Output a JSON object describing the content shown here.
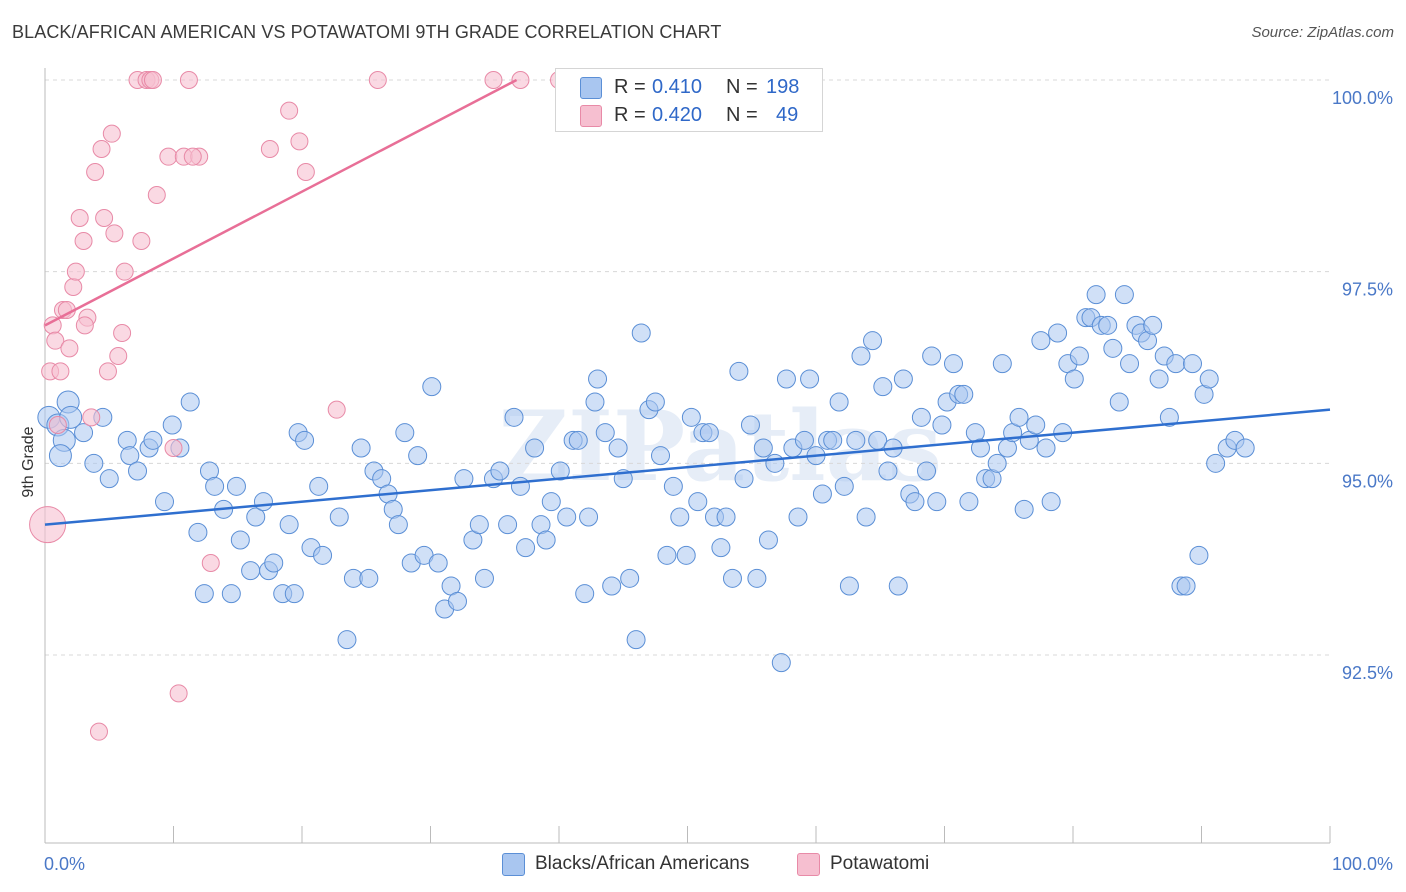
{
  "header": {
    "title": "BLACK/AFRICAN AMERICAN VS POTAWATOMI 9TH GRADE CORRELATION CHART",
    "source": "Source: ZipAtlas.com"
  },
  "watermark": "ZIPatlas",
  "legend": {
    "rows": [
      {
        "r_label": "R =",
        "r_value": "0.410",
        "n_label": "N =",
        "n_value": "198"
      },
      {
        "r_label": "R =",
        "r_value": "0.420",
        "n_label": "N =",
        "n_value": "49"
      }
    ]
  },
  "bottom_legend": [
    {
      "label": "Blacks/African Americans"
    },
    {
      "label": "Potawatomi"
    }
  ],
  "colors": {
    "blue_fill": "#a9c6f0",
    "blue_stroke": "#5b8fd6",
    "blue_line": "#2f6fcf",
    "pink_fill": "#f6bfd0",
    "pink_stroke": "#e88aa7",
    "pink_line": "#e86f97",
    "grid": "#d8d8d8",
    "tick_text": "#4a78c7"
  },
  "chart_data": {
    "type": "scatter",
    "title": "BLACK/AFRICAN AMERICAN VS POTAWATOMI 9TH GRADE CORRELATION CHART",
    "xlabel": "",
    "ylabel": "9th Grade",
    "xlim": [
      0,
      100
    ],
    "ylim": [
      90.0,
      100.2
    ],
    "x_tick_labels": [
      "0.0%",
      "100.0%"
    ],
    "y_ticks": [
      92.5,
      95.0,
      97.5,
      100.0
    ],
    "y_tick_labels": [
      "92.5%",
      "95.0%",
      "97.5%",
      "100.0%"
    ],
    "grid": true,
    "series": [
      {
        "name": "Blacks/African Americans",
        "R": 0.41,
        "N": 198,
        "trend": {
          "x": [
            0,
            100
          ],
          "y": [
            94.2,
            95.7
          ]
        },
        "points": [
          [
            0.3,
            95.6
          ],
          [
            1.0,
            95.5
          ],
          [
            1.5,
            95.3
          ],
          [
            1.8,
            95.8
          ],
          [
            2.0,
            95.6
          ],
          [
            1.2,
            95.1
          ],
          [
            3.0,
            95.4
          ],
          [
            3.8,
            95.0
          ],
          [
            4.5,
            95.6
          ],
          [
            5.0,
            94.8
          ],
          [
            6.4,
            95.3
          ],
          [
            6.6,
            95.1
          ],
          [
            7.2,
            94.9
          ],
          [
            8.1,
            95.2
          ],
          [
            8.4,
            95.3
          ],
          [
            9.3,
            94.5
          ],
          [
            9.9,
            95.5
          ],
          [
            10.5,
            95.2
          ],
          [
            11.3,
            95.8
          ],
          [
            11.9,
            94.1
          ],
          [
            12.4,
            93.3
          ],
          [
            12.8,
            94.9
          ],
          [
            13.2,
            94.7
          ],
          [
            13.9,
            94.4
          ],
          [
            14.5,
            93.3
          ],
          [
            14.9,
            94.7
          ],
          [
            15.2,
            94.0
          ],
          [
            16.0,
            93.6
          ],
          [
            16.4,
            94.3
          ],
          [
            17.0,
            94.5
          ],
          [
            17.4,
            93.6
          ],
          [
            17.8,
            93.7
          ],
          [
            18.5,
            93.3
          ],
          [
            19.0,
            94.2
          ],
          [
            19.4,
            93.3
          ],
          [
            19.7,
            95.4
          ],
          [
            20.2,
            95.3
          ],
          [
            20.7,
            93.9
          ],
          [
            21.3,
            94.7
          ],
          [
            21.6,
            93.8
          ],
          [
            22.9,
            94.3
          ],
          [
            23.5,
            92.7
          ],
          [
            24.0,
            93.5
          ],
          [
            24.6,
            95.2
          ],
          [
            25.2,
            93.5
          ],
          [
            25.6,
            94.9
          ],
          [
            26.2,
            94.8
          ],
          [
            26.7,
            94.6
          ],
          [
            27.1,
            94.4
          ],
          [
            27.5,
            94.2
          ],
          [
            28.0,
            95.4
          ],
          [
            28.5,
            93.7
          ],
          [
            29.0,
            95.1
          ],
          [
            29.5,
            93.8
          ],
          [
            30.1,
            96.0
          ],
          [
            30.6,
            93.7
          ],
          [
            31.1,
            93.1
          ],
          [
            31.6,
            93.4
          ],
          [
            32.1,
            93.2
          ],
          [
            32.6,
            94.8
          ],
          [
            33.3,
            94.0
          ],
          [
            33.8,
            94.2
          ],
          [
            34.2,
            93.5
          ],
          [
            34.9,
            94.8
          ],
          [
            35.4,
            94.9
          ],
          [
            36.0,
            94.2
          ],
          [
            36.5,
            95.6
          ],
          [
            37.0,
            94.7
          ],
          [
            37.4,
            93.9
          ],
          [
            38.1,
            95.2
          ],
          [
            38.6,
            94.2
          ],
          [
            39.0,
            94.0
          ],
          [
            39.4,
            94.5
          ],
          [
            40.1,
            94.9
          ],
          [
            40.6,
            94.3
          ],
          [
            41.1,
            95.3
          ],
          [
            41.5,
            95.3
          ],
          [
            42.0,
            93.3
          ],
          [
            42.3,
            94.3
          ],
          [
            42.8,
            95.8
          ],
          [
            43.0,
            96.1
          ],
          [
            43.6,
            95.4
          ],
          [
            44.1,
            93.4
          ],
          [
            44.6,
            95.2
          ],
          [
            45.0,
            94.8
          ],
          [
            45.5,
            93.5
          ],
          [
            46.0,
            92.7
          ],
          [
            46.4,
            96.7
          ],
          [
            47.0,
            95.7
          ],
          [
            47.5,
            95.8
          ],
          [
            47.9,
            95.1
          ],
          [
            48.4,
            93.8
          ],
          [
            48.9,
            94.7
          ],
          [
            49.4,
            94.3
          ],
          [
            49.9,
            93.8
          ],
          [
            50.3,
            95.6
          ],
          [
            50.8,
            94.5
          ],
          [
            51.2,
            95.4
          ],
          [
            51.7,
            95.4
          ],
          [
            52.1,
            94.3
          ],
          [
            52.6,
            93.9
          ],
          [
            53.0,
            94.3
          ],
          [
            53.5,
            93.5
          ],
          [
            54.0,
            96.2
          ],
          [
            54.4,
            94.8
          ],
          [
            54.9,
            95.5
          ],
          [
            55.4,
            93.5
          ],
          [
            55.9,
            95.2
          ],
          [
            56.3,
            94.0
          ],
          [
            56.8,
            95.0
          ],
          [
            57.3,
            92.4
          ],
          [
            57.7,
            96.1
          ],
          [
            58.2,
            95.2
          ],
          [
            58.6,
            94.3
          ],
          [
            59.1,
            95.3
          ],
          [
            59.5,
            96.1
          ],
          [
            60.0,
            95.1
          ],
          [
            60.5,
            94.6
          ],
          [
            60.9,
            95.3
          ],
          [
            61.3,
            95.3
          ],
          [
            61.8,
            95.8
          ],
          [
            62.2,
            94.7
          ],
          [
            62.6,
            93.4
          ],
          [
            63.1,
            95.3
          ],
          [
            63.5,
            96.4
          ],
          [
            63.9,
            94.3
          ],
          [
            64.4,
            96.6
          ],
          [
            64.8,
            95.3
          ],
          [
            65.2,
            96.0
          ],
          [
            65.6,
            94.9
          ],
          [
            66.0,
            95.2
          ],
          [
            66.4,
            93.4
          ],
          [
            66.8,
            96.1
          ],
          [
            67.3,
            94.6
          ],
          [
            67.7,
            94.5
          ],
          [
            68.2,
            95.6
          ],
          [
            68.6,
            94.9
          ],
          [
            69.0,
            96.4
          ],
          [
            69.4,
            94.5
          ],
          [
            69.8,
            95.5
          ],
          [
            70.2,
            95.8
          ],
          [
            70.7,
            96.3
          ],
          [
            71.1,
            95.9
          ],
          [
            71.5,
            95.9
          ],
          [
            71.9,
            94.5
          ],
          [
            72.4,
            95.4
          ],
          [
            72.8,
            95.2
          ],
          [
            73.2,
            94.8
          ],
          [
            73.7,
            94.8
          ],
          [
            74.1,
            95.0
          ],
          [
            74.5,
            96.3
          ],
          [
            74.9,
            95.2
          ],
          [
            75.3,
            95.4
          ],
          [
            75.8,
            95.6
          ],
          [
            76.2,
            94.4
          ],
          [
            76.6,
            95.3
          ],
          [
            77.1,
            95.5
          ],
          [
            77.5,
            96.6
          ],
          [
            77.9,
            95.2
          ],
          [
            78.3,
            94.5
          ],
          [
            78.8,
            96.7
          ],
          [
            79.2,
            95.4
          ],
          [
            79.6,
            96.3
          ],
          [
            80.1,
            96.1
          ],
          [
            80.5,
            96.4
          ],
          [
            81.0,
            96.9
          ],
          [
            81.4,
            96.9
          ],
          [
            81.8,
            97.2
          ],
          [
            82.2,
            96.8
          ],
          [
            82.7,
            96.8
          ],
          [
            83.1,
            96.5
          ],
          [
            83.6,
            95.8
          ],
          [
            84.0,
            97.2
          ],
          [
            84.4,
            96.3
          ],
          [
            84.9,
            96.8
          ],
          [
            85.3,
            96.7
          ],
          [
            85.8,
            96.6
          ],
          [
            86.2,
            96.8
          ],
          [
            86.7,
            96.1
          ],
          [
            87.1,
            96.4
          ],
          [
            87.5,
            95.6
          ],
          [
            88.0,
            96.3
          ],
          [
            88.4,
            93.4
          ],
          [
            88.8,
            93.4
          ],
          [
            89.3,
            96.3
          ],
          [
            89.8,
            93.8
          ],
          [
            90.2,
            95.9
          ],
          [
            90.6,
            96.1
          ],
          [
            91.1,
            95.0
          ],
          [
            92.0,
            95.2
          ],
          [
            92.6,
            95.3
          ],
          [
            93.4,
            95.2
          ]
        ]
      },
      {
        "name": "Potawatomi",
        "R": 0.42,
        "N": 49,
        "trend": {
          "x": [
            0,
            36.7
          ],
          "y": [
            96.8,
            100.0
          ]
        },
        "points": [
          [
            0.2,
            94.2
          ],
          [
            0.4,
            96.2
          ],
          [
            0.6,
            96.8
          ],
          [
            0.8,
            96.6
          ],
          [
            1.0,
            95.5
          ],
          [
            1.2,
            96.2
          ],
          [
            1.4,
            97.0
          ],
          [
            1.7,
            97.0
          ],
          [
            1.9,
            96.5
          ],
          [
            2.2,
            97.3
          ],
          [
            2.4,
            97.5
          ],
          [
            2.7,
            98.2
          ],
          [
            3.0,
            97.9
          ],
          [
            3.3,
            96.9
          ],
          [
            3.6,
            95.6
          ],
          [
            3.9,
            98.8
          ],
          [
            4.2,
            91.5
          ],
          [
            4.4,
            99.1
          ],
          [
            4.6,
            98.2
          ],
          [
            4.9,
            96.2
          ],
          [
            5.2,
            99.3
          ],
          [
            5.4,
            98.0
          ],
          [
            5.7,
            96.4
          ],
          [
            6.0,
            96.7
          ],
          [
            6.2,
            97.5
          ],
          [
            7.2,
            100.0
          ],
          [
            7.5,
            97.9
          ],
          [
            7.9,
            100.0
          ],
          [
            8.2,
            100.0
          ],
          [
            8.4,
            100.0
          ],
          [
            8.7,
            98.5
          ],
          [
            9.6,
            99.0
          ],
          [
            10.0,
            95.2
          ],
          [
            10.4,
            92.0
          ],
          [
            10.8,
            99.0
          ],
          [
            11.2,
            100.0
          ],
          [
            12.0,
            99.0
          ],
          [
            12.9,
            93.7
          ],
          [
            17.5,
            99.1
          ],
          [
            19.0,
            99.6
          ],
          [
            19.8,
            99.2
          ],
          [
            20.3,
            98.8
          ],
          [
            22.7,
            95.7
          ],
          [
            25.9,
            100.0
          ],
          [
            34.9,
            100.0
          ],
          [
            37.0,
            100.0
          ],
          [
            40.0,
            100.0
          ],
          [
            3.1,
            96.8
          ],
          [
            11.5,
            99.0
          ]
        ]
      }
    ]
  }
}
